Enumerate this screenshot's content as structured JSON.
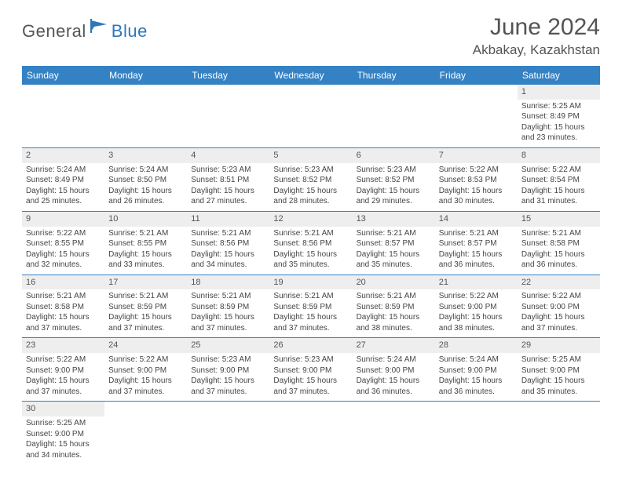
{
  "brand": {
    "part1": "General",
    "part2": "Blue"
  },
  "title": "June 2024",
  "location": "Akbakay, Kazakhstan",
  "weekdays": [
    "Sunday",
    "Monday",
    "Tuesday",
    "Wednesday",
    "Thursday",
    "Friday",
    "Saturday"
  ],
  "colors": {
    "header_bg": "#3481c4",
    "header_text": "#ffffff",
    "rule": "#3481c4",
    "daynum_bg": "#eeeeee",
    "body_text": "#454545",
    "brand_blue": "#2e77b8",
    "title_gray": "#545454"
  },
  "days": [
    {
      "n": 1,
      "sr": "5:25 AM",
      "ss": "8:49 PM",
      "dlh": 15,
      "dlm": 23
    },
    {
      "n": 2,
      "sr": "5:24 AM",
      "ss": "8:49 PM",
      "dlh": 15,
      "dlm": 25
    },
    {
      "n": 3,
      "sr": "5:24 AM",
      "ss": "8:50 PM",
      "dlh": 15,
      "dlm": 26
    },
    {
      "n": 4,
      "sr": "5:23 AM",
      "ss": "8:51 PM",
      "dlh": 15,
      "dlm": 27
    },
    {
      "n": 5,
      "sr": "5:23 AM",
      "ss": "8:52 PM",
      "dlh": 15,
      "dlm": 28
    },
    {
      "n": 6,
      "sr": "5:23 AM",
      "ss": "8:52 PM",
      "dlh": 15,
      "dlm": 29
    },
    {
      "n": 7,
      "sr": "5:22 AM",
      "ss": "8:53 PM",
      "dlh": 15,
      "dlm": 30
    },
    {
      "n": 8,
      "sr": "5:22 AM",
      "ss": "8:54 PM",
      "dlh": 15,
      "dlm": 31
    },
    {
      "n": 9,
      "sr": "5:22 AM",
      "ss": "8:55 PM",
      "dlh": 15,
      "dlm": 32
    },
    {
      "n": 10,
      "sr": "5:21 AM",
      "ss": "8:55 PM",
      "dlh": 15,
      "dlm": 33
    },
    {
      "n": 11,
      "sr": "5:21 AM",
      "ss": "8:56 PM",
      "dlh": 15,
      "dlm": 34
    },
    {
      "n": 12,
      "sr": "5:21 AM",
      "ss": "8:56 PM",
      "dlh": 15,
      "dlm": 35
    },
    {
      "n": 13,
      "sr": "5:21 AM",
      "ss": "8:57 PM",
      "dlh": 15,
      "dlm": 35
    },
    {
      "n": 14,
      "sr": "5:21 AM",
      "ss": "8:57 PM",
      "dlh": 15,
      "dlm": 36
    },
    {
      "n": 15,
      "sr": "5:21 AM",
      "ss": "8:58 PM",
      "dlh": 15,
      "dlm": 36
    },
    {
      "n": 16,
      "sr": "5:21 AM",
      "ss": "8:58 PM",
      "dlh": 15,
      "dlm": 37
    },
    {
      "n": 17,
      "sr": "5:21 AM",
      "ss": "8:59 PM",
      "dlh": 15,
      "dlm": 37
    },
    {
      "n": 18,
      "sr": "5:21 AM",
      "ss": "8:59 PM",
      "dlh": 15,
      "dlm": 37
    },
    {
      "n": 19,
      "sr": "5:21 AM",
      "ss": "8:59 PM",
      "dlh": 15,
      "dlm": 37
    },
    {
      "n": 20,
      "sr": "5:21 AM",
      "ss": "8:59 PM",
      "dlh": 15,
      "dlm": 38
    },
    {
      "n": 21,
      "sr": "5:22 AM",
      "ss": "9:00 PM",
      "dlh": 15,
      "dlm": 38
    },
    {
      "n": 22,
      "sr": "5:22 AM",
      "ss": "9:00 PM",
      "dlh": 15,
      "dlm": 37
    },
    {
      "n": 23,
      "sr": "5:22 AM",
      "ss": "9:00 PM",
      "dlh": 15,
      "dlm": 37
    },
    {
      "n": 24,
      "sr": "5:22 AM",
      "ss": "9:00 PM",
      "dlh": 15,
      "dlm": 37
    },
    {
      "n": 25,
      "sr": "5:23 AM",
      "ss": "9:00 PM",
      "dlh": 15,
      "dlm": 37
    },
    {
      "n": 26,
      "sr": "5:23 AM",
      "ss": "9:00 PM",
      "dlh": 15,
      "dlm": 37
    },
    {
      "n": 27,
      "sr": "5:24 AM",
      "ss": "9:00 PM",
      "dlh": 15,
      "dlm": 36
    },
    {
      "n": 28,
      "sr": "5:24 AM",
      "ss": "9:00 PM",
      "dlh": 15,
      "dlm": 36
    },
    {
      "n": 29,
      "sr": "5:25 AM",
      "ss": "9:00 PM",
      "dlh": 15,
      "dlm": 35
    },
    {
      "n": 30,
      "sr": "5:25 AM",
      "ss": "9:00 PM",
      "dlh": 15,
      "dlm": 34
    }
  ],
  "layout": {
    "first_weekday_index": 6,
    "total_days": 30
  },
  "labels": {
    "sunrise": "Sunrise:",
    "sunset": "Sunset:",
    "daylight_prefix": "Daylight:",
    "hours_word": "hours",
    "and_word": "and",
    "minutes_word": "minutes."
  }
}
